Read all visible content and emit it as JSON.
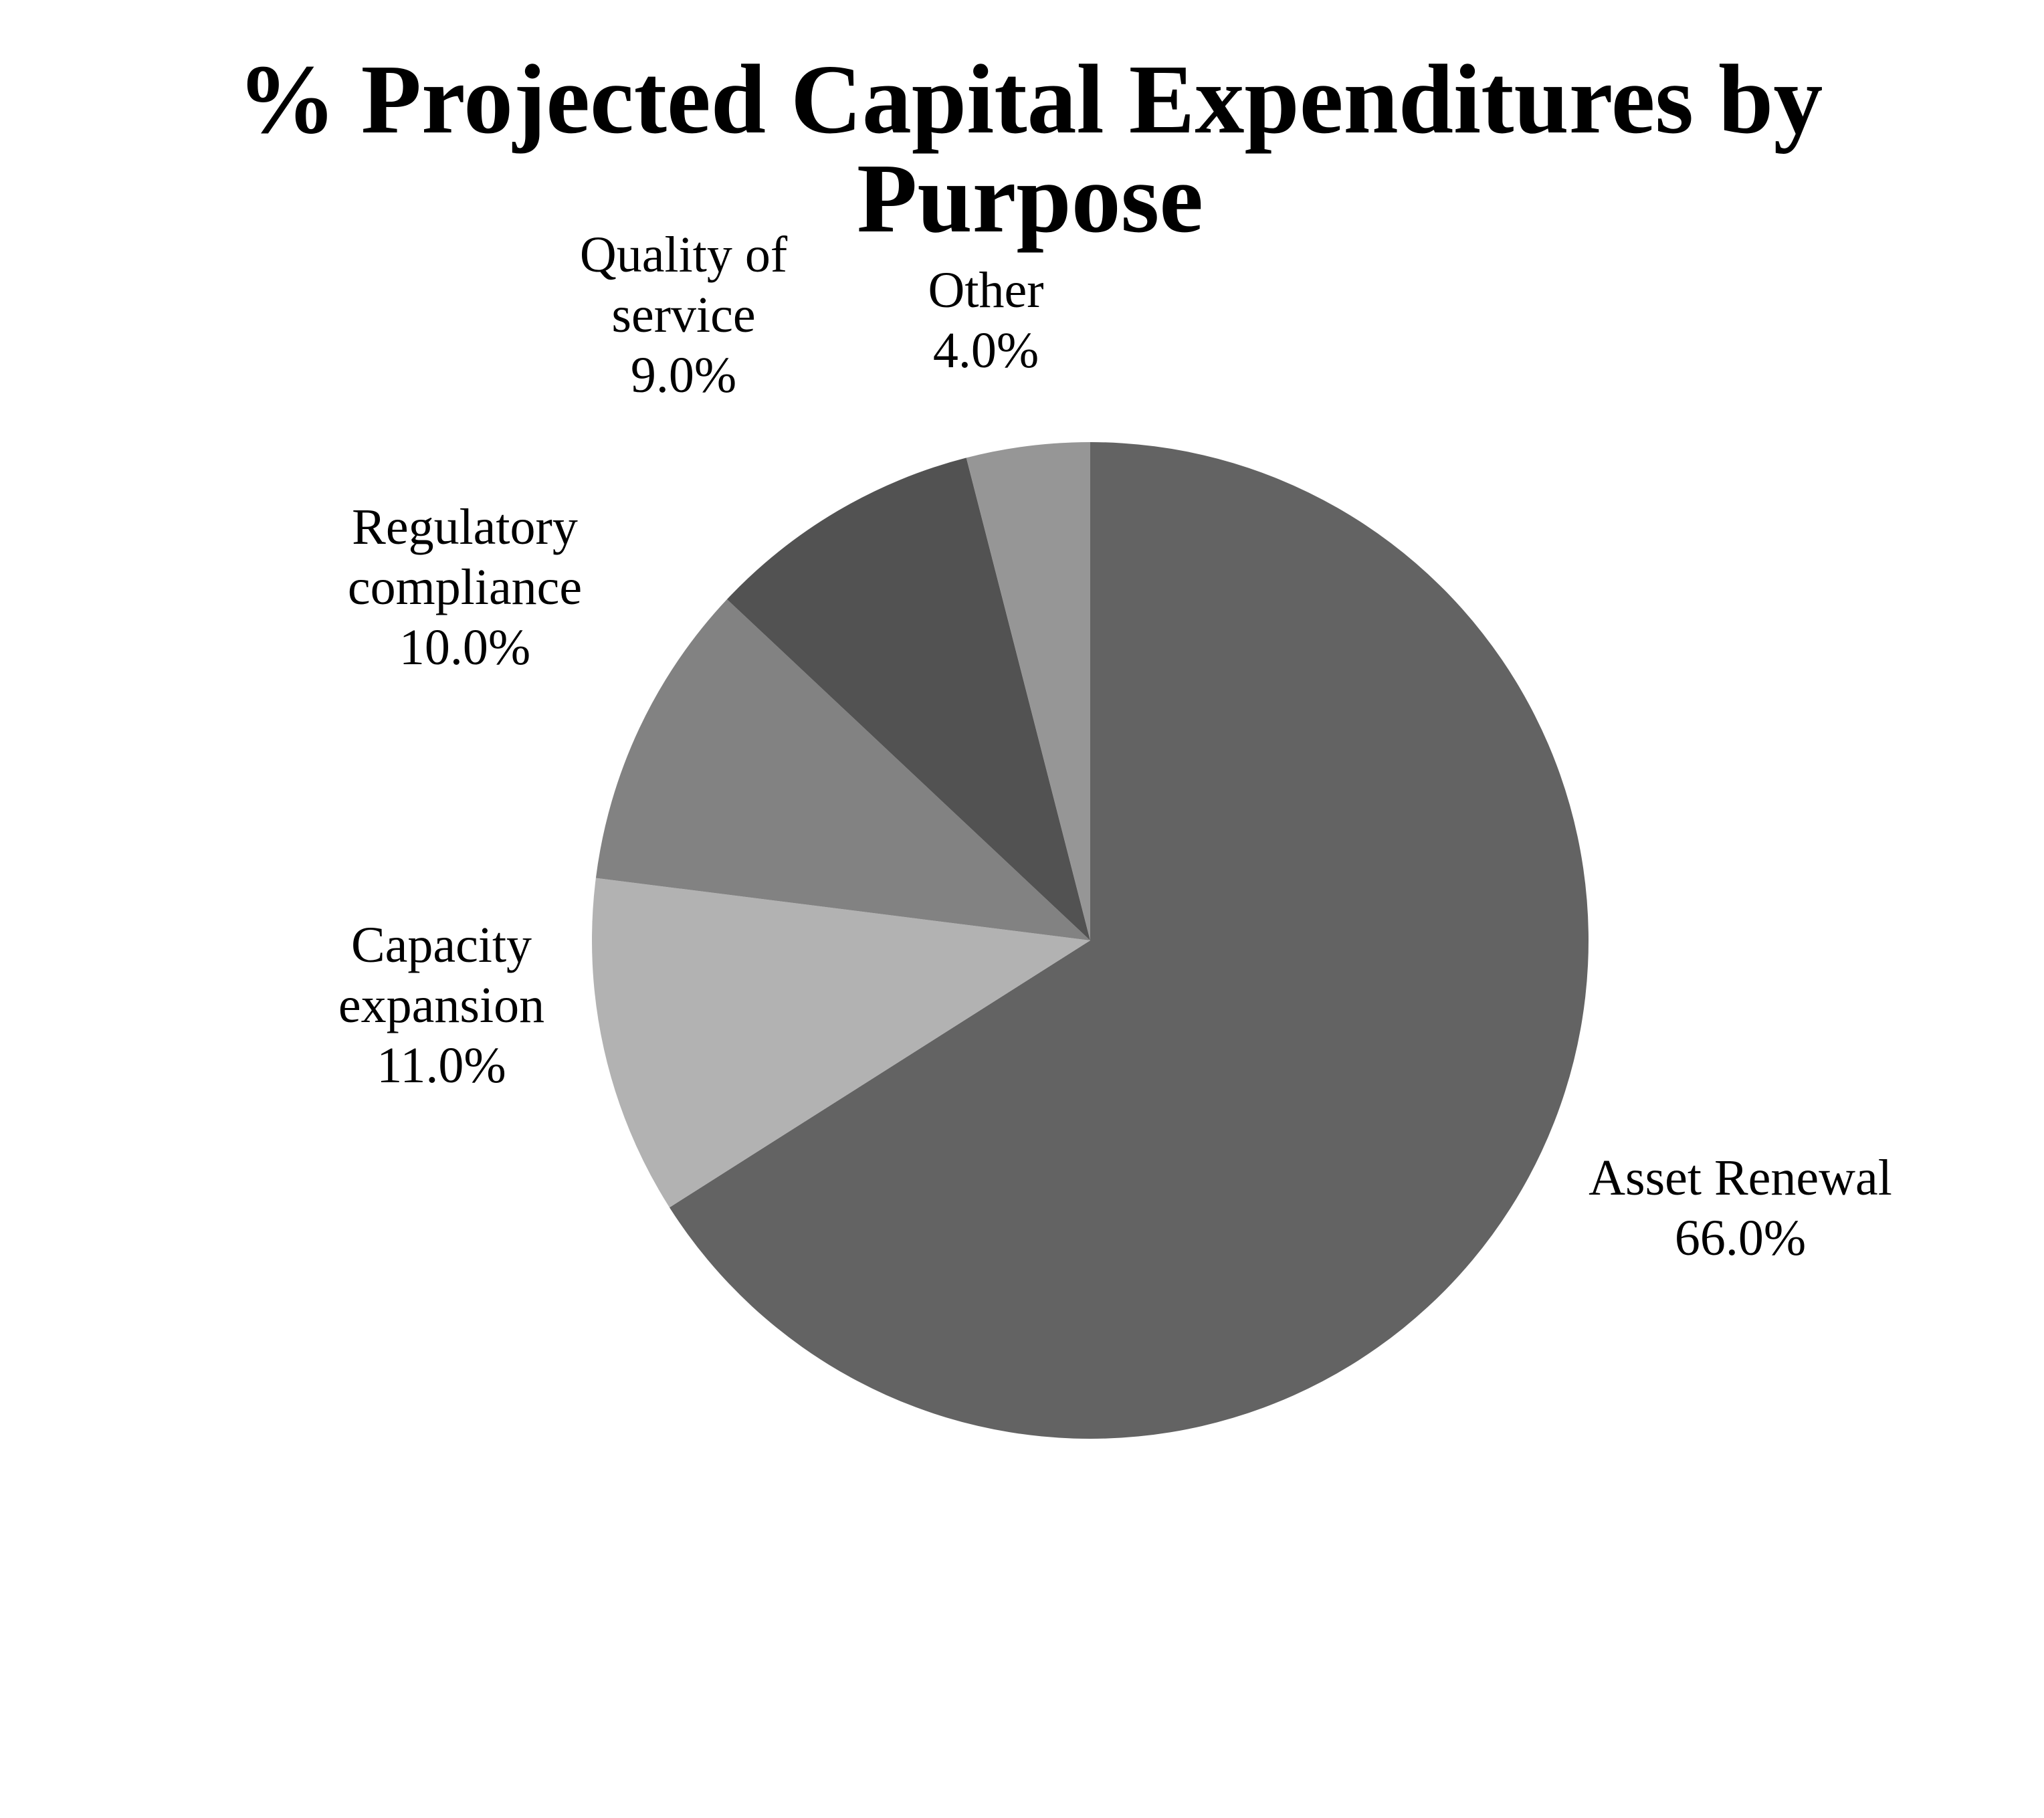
{
  "chart_data": {
    "type": "pie",
    "title_lines": [
      "% Projected Capital Expenditures by",
      "Purpose"
    ],
    "slices": [
      {
        "label_lines": [
          "Asset Renewal"
        ],
        "value_label": "66.0%",
        "value": 66.0,
        "color": "#636363"
      },
      {
        "label_lines": [
          "Capacity",
          "expansion"
        ],
        "value_label": "11.0%",
        "value": 11.0,
        "color": "#b2b2b2"
      },
      {
        "label_lines": [
          "Regulatory",
          "compliance"
        ],
        "value_label": "10.0%",
        "value": 10.0,
        "color": "#828282"
      },
      {
        "label_lines": [
          "Quality of",
          "service"
        ],
        "value_label": "9.0%",
        "value": 9.0,
        "color": "#525252"
      },
      {
        "label_lines": [
          "Other"
        ],
        "value_label": "4.0%",
        "value": 4.0,
        "color": "#969696"
      }
    ],
    "start": "12 o'clock",
    "direction": "clockwise",
    "legend": "none"
  }
}
